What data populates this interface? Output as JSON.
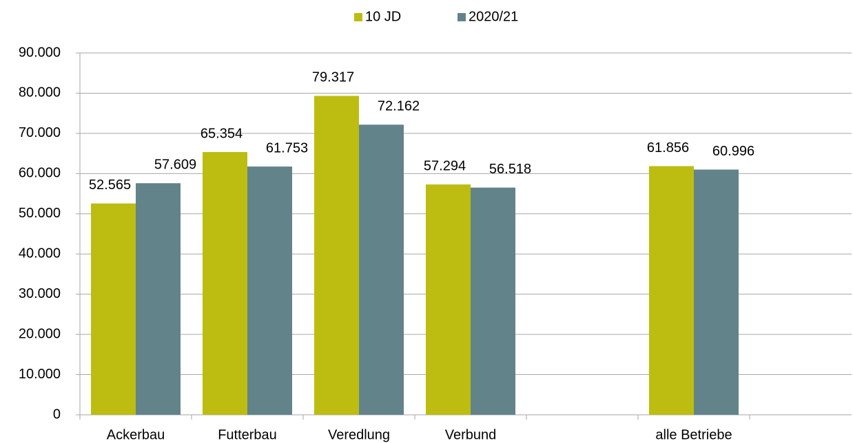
{
  "chart_data": {
    "type": "bar",
    "categories": [
      "Ackerbau",
      "Futterbau",
      "Veredlung",
      "Verbund",
      null,
      "alle Betriebe",
      null
    ],
    "series": [
      {
        "name": "10 JD",
        "color": "#bcbd10",
        "values": [
          52565,
          65354,
          79317,
          57294,
          null,
          61856,
          null
        ],
        "value_labels": [
          "52.565",
          "65.354",
          "79.317",
          "57.294",
          null,
          "61.856",
          null
        ]
      },
      {
        "name": "2020/21",
        "color": "#62838a",
        "values": [
          57609,
          61753,
          72162,
          56518,
          null,
          60996,
          null
        ],
        "value_labels": [
          "57.609",
          "61.753",
          "72.162",
          "56.518",
          null,
          "60.996",
          null
        ]
      }
    ],
    "ylim": [
      0,
      90000
    ],
    "yticks": [
      0,
      {
        "value": 10000,
        "label": "10.000"
      },
      {
        "value": 20000,
        "label": "20.000"
      },
      {
        "value": 30000,
        "label": "30.000"
      },
      {
        "value": 40000,
        "label": "40.000"
      },
      {
        "value": 50000,
        "label": "50.000"
      },
      {
        "value": 60000,
        "label": "60.000"
      },
      {
        "value": 70000,
        "label": "70.000"
      },
      {
        "value": 80000,
        "label": "80.000"
      },
      {
        "value": 90000,
        "label": "90.000"
      }
    ],
    "grid": true,
    "legend": "top"
  }
}
